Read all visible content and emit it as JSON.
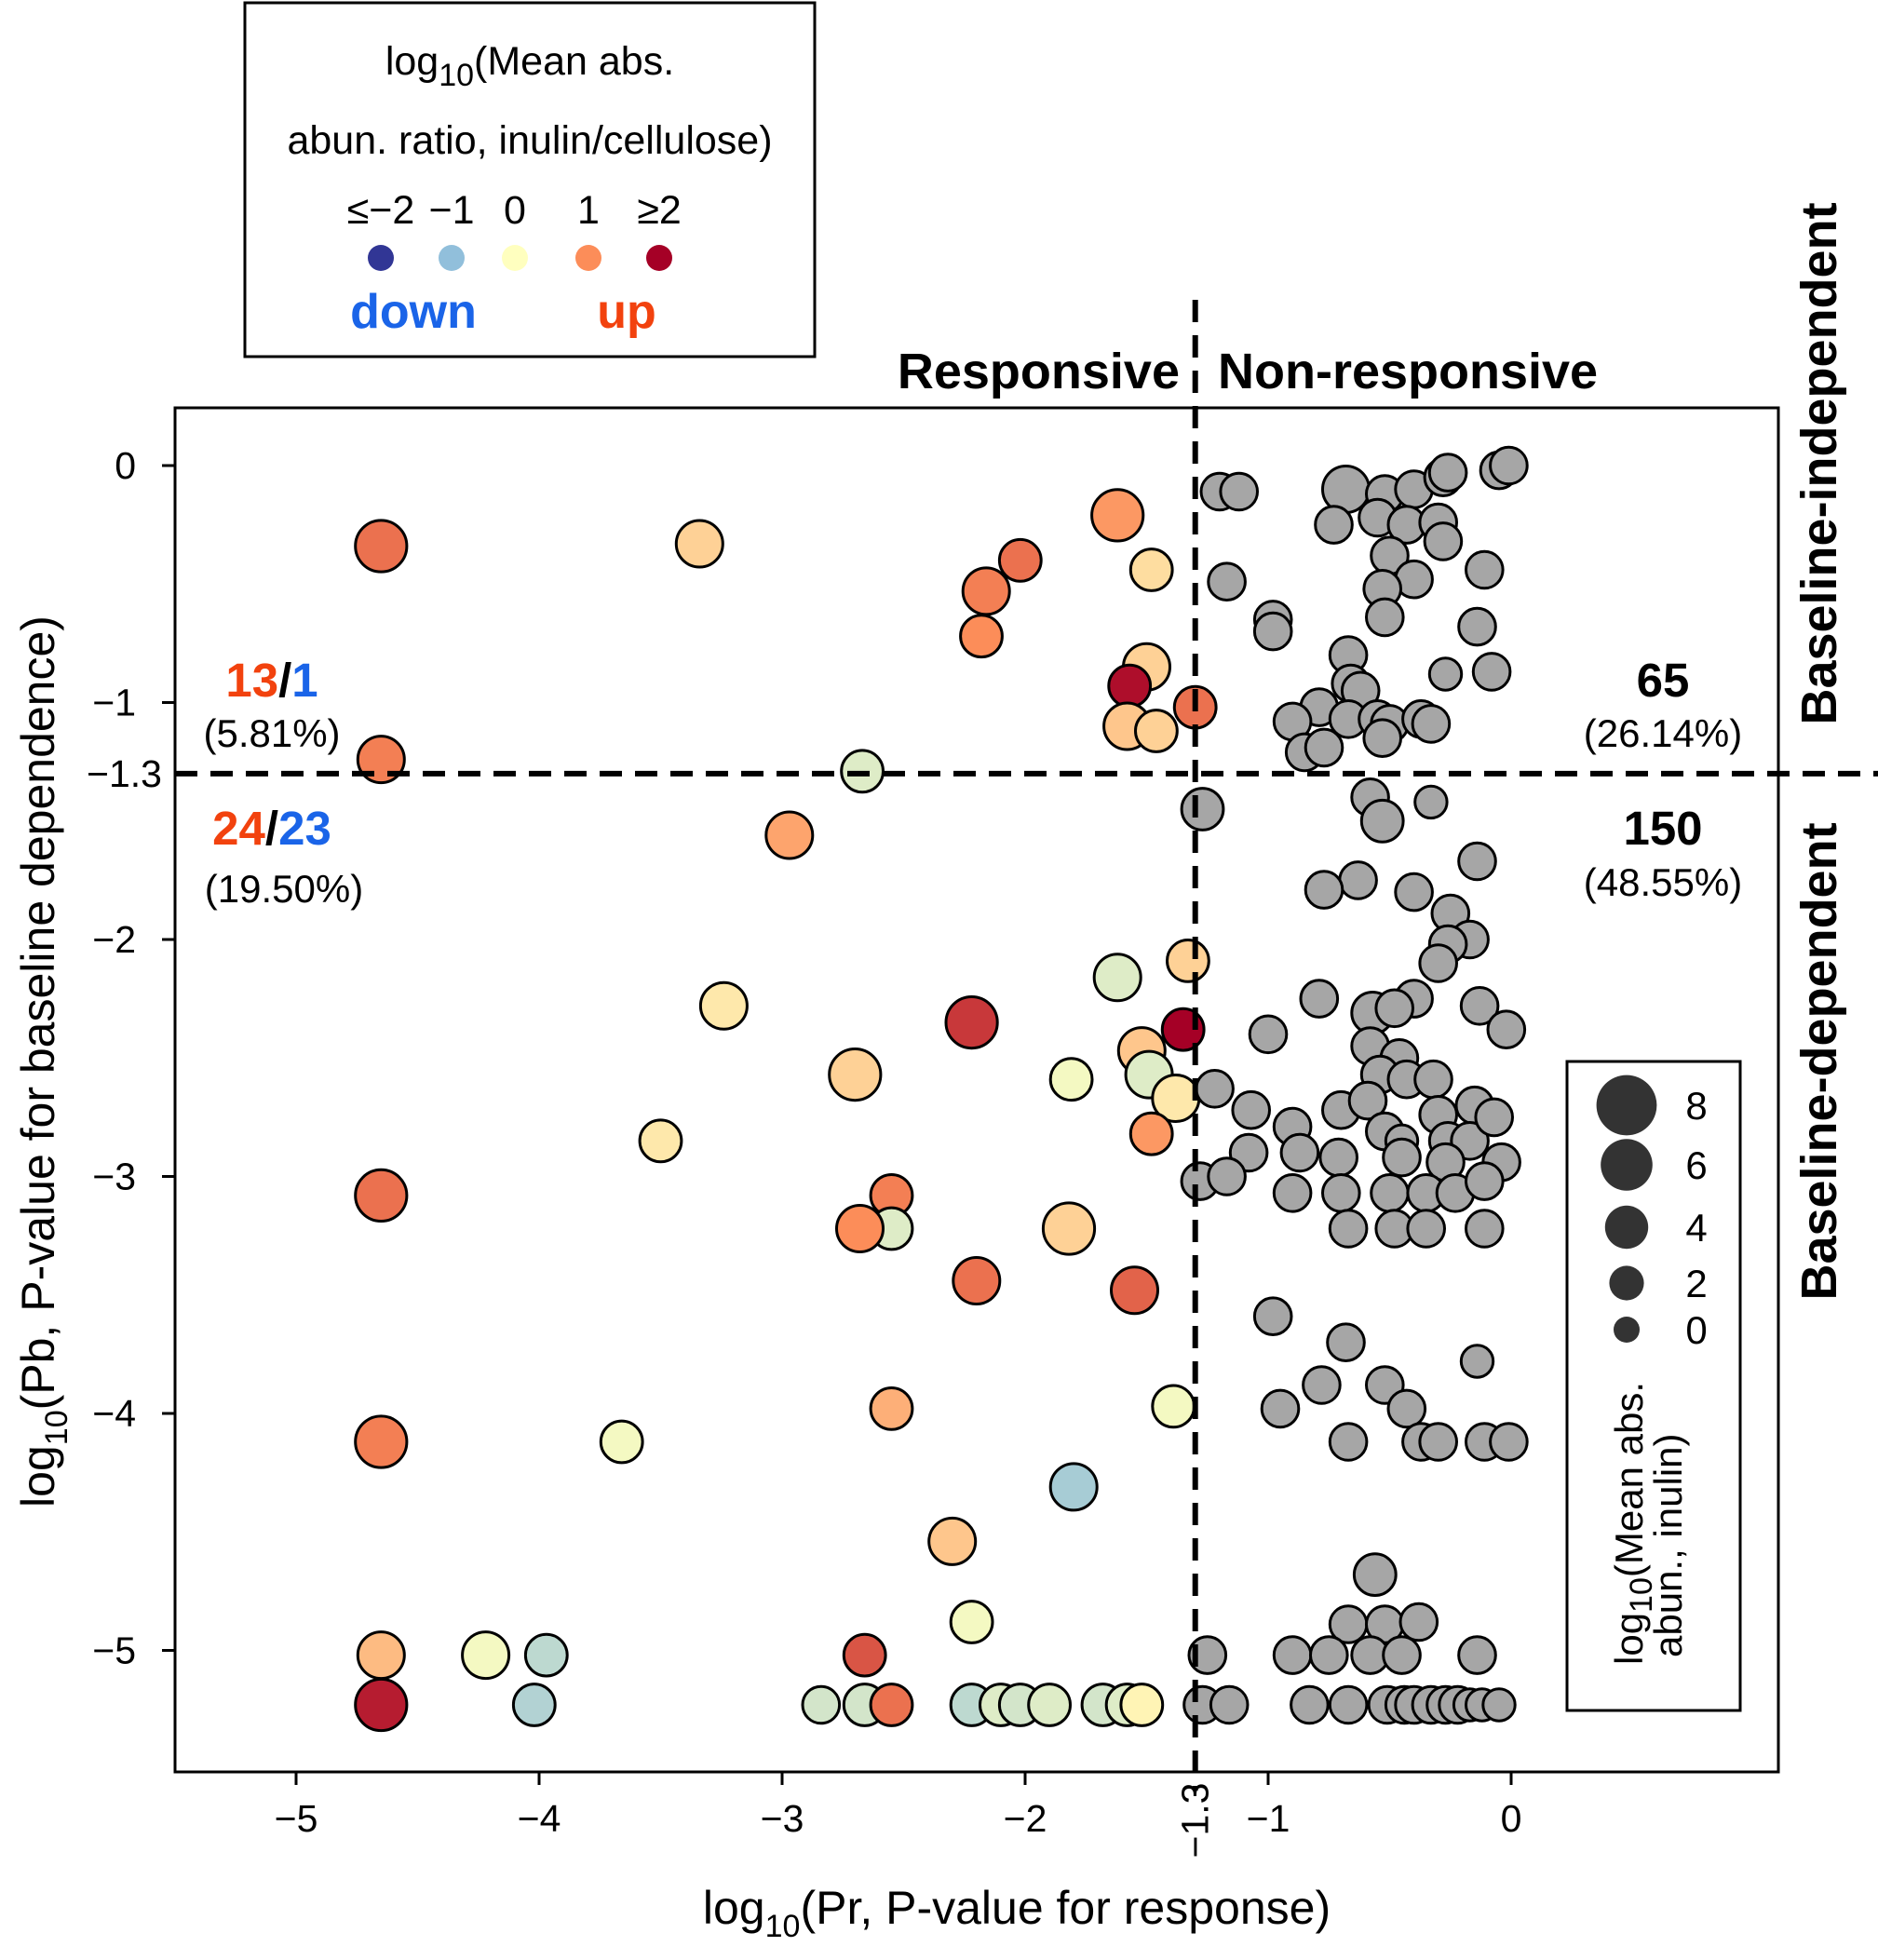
{
  "chart_data": {
    "type": "scatter",
    "xlabel": {
      "prefix": "log",
      "sub": "10",
      "text": "(Pr, P-value for response)"
    },
    "ylabel": {
      "prefix": "log",
      "sub": "10",
      "text": "(Pb, P-value for baseline dependence)"
    },
    "xlim": [
      -5.5,
      1.1
    ],
    "ylim": [
      -5.5,
      0.25
    ],
    "xticks": [
      -5,
      -4,
      -3,
      -2,
      -1,
      0
    ],
    "xtick_labels": [
      "−5",
      "−4",
      "−3",
      "−2",
      "−1",
      "0"
    ],
    "yticks": [
      0,
      -1,
      -2,
      -3,
      -4,
      -5
    ],
    "ytick_labels": [
      "0",
      "−1",
      "−2",
      "−3",
      "−4",
      "−5"
    ],
    "thresholds": {
      "x": -1.3,
      "y": -1.3,
      "x_label": "−1.3",
      "y_label": "−1.3"
    },
    "region_labels": {
      "left": "Responsive",
      "right": "Non-responsive",
      "top": "Baseline-independent",
      "bottom": "Baseline-dependent"
    },
    "quadrant_counts": {
      "top_left": {
        "up": "13",
        "sep": "/",
        "down": "1",
        "pct": "(5.81%)"
      },
      "bottom_left": {
        "up": "24",
        "sep": "/",
        "down": "23",
        "pct": "(19.50%)"
      },
      "top_right": {
        "count": "65",
        "pct": "(26.14%)"
      },
      "bottom_right": {
        "count": "150",
        "pct": "(48.55%)"
      }
    },
    "color_legend": {
      "title_prefix": "log",
      "title_sub": "10",
      "title_line1": "(Mean abs.",
      "title_line2": "abun. ratio, inulin/cellulose)",
      "items": [
        {
          "label": "≤−2",
          "color": "#313695"
        },
        {
          "label": "−1",
          "color": "#91bfdb"
        },
        {
          "label": "0",
          "color": "#ffffbf"
        },
        {
          "label": "1",
          "color": "#fc8d59"
        },
        {
          "label": "≥2",
          "color": "#a50026"
        }
      ],
      "down_label": "down",
      "up_label": "up",
      "down_color": "#1a64e8",
      "up_color": "#f2420e"
    },
    "size_legend": {
      "title_prefix": "log",
      "title_sub": "10",
      "title_line1": "(Mean abs.",
      "title_line2": "abun., inulin)",
      "values": [
        8,
        6,
        4,
        2,
        0
      ],
      "labels": [
        "8",
        "6",
        "4",
        "2",
        "0"
      ]
    },
    "gray_color": "#a6a6a6",
    "points": [
      {
        "x": -4.65,
        "y": -0.34,
        "s": 6,
        "c": 1.2
      },
      {
        "x": -4.65,
        "y": -1.24,
        "s": 5,
        "c": 1.1
      },
      {
        "x": -3.34,
        "y": -0.33,
        "s": 5,
        "c": 0.4
      },
      {
        "x": -1.62,
        "y": -0.21,
        "s": 6,
        "c": 0.9
      },
      {
        "x": -2.02,
        "y": -0.4,
        "s": 4,
        "c": 1.2
      },
      {
        "x": -2.16,
        "y": -0.53,
        "s": 5,
        "c": 1.1
      },
      {
        "x": -1.48,
        "y": -0.44,
        "s": 4,
        "c": 0.3
      },
      {
        "x": -2.18,
        "y": -0.72,
        "s": 4,
        "c": 1.0
      },
      {
        "x": -1.5,
        "y": -0.85,
        "s": 5,
        "c": 0.4
      },
      {
        "x": -1.57,
        "y": -0.93,
        "s": 4,
        "c": 1.9
      },
      {
        "x": -1.3,
        "y": -1.02,
        "s": 4,
        "c": 1.2
      },
      {
        "x": -1.58,
        "y": -1.1,
        "s": 5,
        "c": 0.5
      },
      {
        "x": -1.46,
        "y": -1.12,
        "s": 4,
        "c": 0.4
      },
      {
        "x": -2.67,
        "y": -1.29,
        "s": 4,
        "c": -0.3
      },
      {
        "x": -2.97,
        "y": -1.56,
        "s": 5,
        "c": 0.8
      },
      {
        "x": -1.33,
        "y": -2.09,
        "s": 4,
        "c": 0.4
      },
      {
        "x": -1.62,
        "y": -2.16,
        "s": 5,
        "c": -0.3
      },
      {
        "x": -3.24,
        "y": -2.28,
        "s": 5,
        "c": 0.2
      },
      {
        "x": -2.22,
        "y": -2.35,
        "s": 6,
        "c": 1.6
      },
      {
        "x": -1.35,
        "y": -2.38,
        "s": 4,
        "c": 2.0
      },
      {
        "x": -1.52,
        "y": -2.47,
        "s": 5,
        "c": 0.5
      },
      {
        "x": -1.49,
        "y": -2.57,
        "s": 5,
        "c": -0.3
      },
      {
        "x": -2.7,
        "y": -2.57,
        "s": 6,
        "c": 0.4
      },
      {
        "x": -1.81,
        "y": -2.59,
        "s": 4,
        "c": -0.1
      },
      {
        "x": -1.38,
        "y": -2.67,
        "s": 5,
        "c": 0.2
      },
      {
        "x": -1.48,
        "y": -2.82,
        "s": 4,
        "c": 0.9
      },
      {
        "x": -3.5,
        "y": -2.85,
        "s": 4,
        "c": 0.2
      },
      {
        "x": -4.65,
        "y": -3.08,
        "s": 6,
        "c": 1.2
      },
      {
        "x": -2.55,
        "y": -3.08,
        "s": 4,
        "c": 1.1
      },
      {
        "x": -2.55,
        "y": -3.22,
        "s": 4,
        "c": -0.3
      },
      {
        "x": -2.68,
        "y": -3.22,
        "s": 5,
        "c": 1.0
      },
      {
        "x": -1.82,
        "y": -3.22,
        "s": 6,
        "c": 0.4
      },
      {
        "x": -2.2,
        "y": -3.44,
        "s": 5,
        "c": 1.2
      },
      {
        "x": -1.55,
        "y": -3.48,
        "s": 5,
        "c": 1.3
      },
      {
        "x": -4.65,
        "y": -4.12,
        "s": 6,
        "c": 1.1
      },
      {
        "x": -3.66,
        "y": -4.12,
        "s": 4,
        "c": -0.1
      },
      {
        "x": -2.55,
        "y": -3.98,
        "s": 4,
        "c": 0.7
      },
      {
        "x": -1.39,
        "y": -3.97,
        "s": 4,
        "c": -0.1
      },
      {
        "x": -1.8,
        "y": -4.31,
        "s": 5,
        "c": -0.8
      },
      {
        "x": -2.3,
        "y": -4.54,
        "s": 5,
        "c": 0.5
      },
      {
        "x": -2.22,
        "y": -4.88,
        "s": 4,
        "c": -0.1
      },
      {
        "x": -4.65,
        "y": -5.02,
        "s": 5,
        "c": 0.6
      },
      {
        "x": -4.22,
        "y": -5.02,
        "s": 5,
        "c": -0.1
      },
      {
        "x": -3.97,
        "y": -5.02,
        "s": 4,
        "c": -0.6
      },
      {
        "x": -2.66,
        "y": -5.02,
        "s": 4,
        "c": 1.4
      },
      {
        "x": -4.65,
        "y": -5.23,
        "s": 6,
        "c": 1.8
      },
      {
        "x": -4.02,
        "y": -5.23,
        "s": 4,
        "c": -0.7
      },
      {
        "x": -2.84,
        "y": -5.23,
        "s": 3,
        "c": -0.4
      },
      {
        "x": -2.66,
        "y": -5.23,
        "s": 4,
        "c": -0.4
      },
      {
        "x": -2.55,
        "y": -5.23,
        "s": 4,
        "c": 1.2
      },
      {
        "x": -2.22,
        "y": -5.23,
        "s": 4,
        "c": -0.6
      },
      {
        "x": -2.1,
        "y": -5.23,
        "s": 4,
        "c": -0.3
      },
      {
        "x": -2.02,
        "y": -5.23,
        "s": 4,
        "c": -0.4
      },
      {
        "x": -1.9,
        "y": -5.23,
        "s": 4,
        "c": -0.3
      },
      {
        "x": -1.68,
        "y": -5.23,
        "s": 4,
        "c": -0.4
      },
      {
        "x": -1.58,
        "y": -5.23,
        "s": 4,
        "c": -0.3
      },
      {
        "x": -1.52,
        "y": -5.23,
        "s": 4,
        "c": 0.1
      },
      {
        "x": -1.2,
        "y": -0.11,
        "g": 3
      },
      {
        "x": -1.12,
        "y": -0.11,
        "g": 3
      },
      {
        "x": -1.17,
        "y": -0.49,
        "g": 3
      },
      {
        "x": -0.98,
        "y": -0.65,
        "g": 3
      },
      {
        "x": -0.98,
        "y": -0.7,
        "g": 3
      },
      {
        "x": -1.27,
        "y": -1.45,
        "g": 4
      },
      {
        "x": -0.68,
        "y": -0.1,
        "g": 5
      },
      {
        "x": -0.73,
        "y": -0.25,
        "g": 3
      },
      {
        "x": -0.52,
        "y": -0.12,
        "g": 3
      },
      {
        "x": -0.4,
        "y": -0.1,
        "g": 3
      },
      {
        "x": -0.28,
        "y": -0.05,
        "g": 3
      },
      {
        "x": -0.26,
        "y": -0.03,
        "g": 3
      },
      {
        "x": -0.05,
        "y": -0.02,
        "g": 3
      },
      {
        "x": -0.01,
        "y": 0.0,
        "g": 3
      },
      {
        "x": -0.55,
        "y": -0.22,
        "g": 3
      },
      {
        "x": -0.43,
        "y": -0.25,
        "g": 3
      },
      {
        "x": -0.3,
        "y": -0.24,
        "g": 3
      },
      {
        "x": -0.5,
        "y": -0.38,
        "g": 3
      },
      {
        "x": -0.28,
        "y": -0.32,
        "g": 3
      },
      {
        "x": -0.4,
        "y": -0.48,
        "g": 3
      },
      {
        "x": -0.11,
        "y": -0.44,
        "g": 3
      },
      {
        "x": -0.53,
        "y": -0.52,
        "g": 3
      },
      {
        "x": -0.52,
        "y": -0.64,
        "g": 3
      },
      {
        "x": -0.14,
        "y": -0.68,
        "g": 3
      },
      {
        "x": -0.08,
        "y": -0.87,
        "g": 3
      },
      {
        "x": -0.27,
        "y": -0.88,
        "g": 2
      },
      {
        "x": -0.67,
        "y": -0.8,
        "g": 3
      },
      {
        "x": -0.66,
        "y": -0.92,
        "g": 3
      },
      {
        "x": -0.62,
        "y": -0.95,
        "g": 3
      },
      {
        "x": -0.79,
        "y": -1.02,
        "g": 3
      },
      {
        "x": -0.67,
        "y": -1.07,
        "g": 3
      },
      {
        "x": -0.55,
        "y": -1.07,
        "g": 3
      },
      {
        "x": -0.9,
        "y": -1.08,
        "g": 3
      },
      {
        "x": -0.5,
        "y": -1.09,
        "g": 3
      },
      {
        "x": -0.37,
        "y": -1.07,
        "g": 3
      },
      {
        "x": -0.33,
        "y": -1.09,
        "g": 3
      },
      {
        "x": -0.85,
        "y": -1.21,
        "g": 3
      },
      {
        "x": -0.77,
        "y": -1.19,
        "g": 3
      },
      {
        "x": -0.53,
        "y": -1.15,
        "g": 3
      },
      {
        "x": -0.58,
        "y": -1.4,
        "g": 3
      },
      {
        "x": -0.33,
        "y": -1.42,
        "g": 2
      },
      {
        "x": -0.53,
        "y": -1.5,
        "g": 4
      },
      {
        "x": -0.63,
        "y": -1.75,
        "g": 3
      },
      {
        "x": -0.77,
        "y": -1.79,
        "g": 3
      },
      {
        "x": -0.4,
        "y": -1.8,
        "g": 3
      },
      {
        "x": -0.25,
        "y": -1.89,
        "g": 3
      },
      {
        "x": -0.14,
        "y": -1.67,
        "g": 3
      },
      {
        "x": -0.17,
        "y": -2.0,
        "g": 3
      },
      {
        "x": -0.26,
        "y": -2.02,
        "g": 3
      },
      {
        "x": -0.3,
        "y": -2.1,
        "g": 3
      },
      {
        "x": -0.79,
        "y": -2.25,
        "g": 3
      },
      {
        "x": -0.4,
        "y": -2.25,
        "g": 3
      },
      {
        "x": -0.13,
        "y": -2.28,
        "g": 3
      },
      {
        "x": -0.57,
        "y": -2.31,
        "g": 4
      },
      {
        "x": -0.48,
        "y": -2.29,
        "g": 3
      },
      {
        "x": -0.02,
        "y": -2.38,
        "g": 3
      },
      {
        "x": -1.0,
        "y": -2.4,
        "g": 3
      },
      {
        "x": -0.58,
        "y": -2.45,
        "g": 3
      },
      {
        "x": -0.46,
        "y": -2.5,
        "g": 3
      },
      {
        "x": -0.54,
        "y": -2.57,
        "g": 3
      },
      {
        "x": -0.43,
        "y": -2.59,
        "g": 3
      },
      {
        "x": -0.32,
        "y": -2.59,
        "g": 3
      },
      {
        "x": -1.22,
        "y": -2.63,
        "g": 3
      },
      {
        "x": -1.07,
        "y": -2.72,
        "g": 3
      },
      {
        "x": -0.9,
        "y": -2.79,
        "g": 3
      },
      {
        "x": -0.7,
        "y": -2.72,
        "g": 3
      },
      {
        "x": -0.59,
        "y": -2.68,
        "g": 3
      },
      {
        "x": -0.3,
        "y": -2.74,
        "g": 3
      },
      {
        "x": -0.15,
        "y": -2.7,
        "g": 3
      },
      {
        "x": -0.52,
        "y": -2.81,
        "g": 3
      },
      {
        "x": -0.45,
        "y": -2.85,
        "g": 2
      },
      {
        "x": -0.26,
        "y": -2.85,
        "g": 3
      },
      {
        "x": -0.17,
        "y": -2.85,
        "g": 3
      },
      {
        "x": -0.07,
        "y": -2.75,
        "g": 3
      },
      {
        "x": -1.08,
        "y": -2.9,
        "g": 3
      },
      {
        "x": -0.87,
        "y": -2.9,
        "g": 3
      },
      {
        "x": -0.71,
        "y": -2.92,
        "g": 3
      },
      {
        "x": -0.45,
        "y": -2.92,
        "g": 3
      },
      {
        "x": -0.27,
        "y": -2.94,
        "g": 3
      },
      {
        "x": -0.04,
        "y": -2.94,
        "g": 3
      },
      {
        "x": -1.28,
        "y": -3.02,
        "g": 3
      },
      {
        "x": -1.17,
        "y": -3.0,
        "g": 3
      },
      {
        "x": -0.9,
        "y": -3.07,
        "g": 3
      },
      {
        "x": -0.7,
        "y": -3.07,
        "g": 3
      },
      {
        "x": -0.5,
        "y": -3.07,
        "g": 3
      },
      {
        "x": -0.35,
        "y": -3.07,
        "g": 3
      },
      {
        "x": -0.23,
        "y": -3.07,
        "g": 3
      },
      {
        "x": -0.11,
        "y": -3.02,
        "g": 3
      },
      {
        "x": -0.67,
        "y": -3.22,
        "g": 3
      },
      {
        "x": -0.48,
        "y": -3.22,
        "g": 3
      },
      {
        "x": -0.35,
        "y": -3.22,
        "g": 3
      },
      {
        "x": -0.11,
        "y": -3.22,
        "g": 3
      },
      {
        "x": -0.98,
        "y": -3.59,
        "g": 3
      },
      {
        "x": -0.68,
        "y": -3.7,
        "g": 3
      },
      {
        "x": -0.78,
        "y": -3.88,
        "g": 3
      },
      {
        "x": -0.52,
        "y": -3.88,
        "g": 3
      },
      {
        "x": -0.14,
        "y": -3.78,
        "g": 2
      },
      {
        "x": -0.95,
        "y": -3.98,
        "g": 3
      },
      {
        "x": -0.43,
        "y": -3.98,
        "g": 3
      },
      {
        "x": -0.67,
        "y": -4.12,
        "g": 3
      },
      {
        "x": -0.37,
        "y": -4.12,
        "g": 3
      },
      {
        "x": -0.3,
        "y": -4.12,
        "g": 3
      },
      {
        "x": -0.11,
        "y": -4.12,
        "g": 3
      },
      {
        "x": -0.01,
        "y": -4.12,
        "g": 3
      },
      {
        "x": -0.56,
        "y": -4.68,
        "g": 4
      },
      {
        "x": -0.67,
        "y": -4.89,
        "g": 3
      },
      {
        "x": -0.52,
        "y": -4.89,
        "g": 3
      },
      {
        "x": -0.38,
        "y": -4.88,
        "g": 3
      },
      {
        "x": -1.25,
        "y": -5.02,
        "g": 3
      },
      {
        "x": -0.9,
        "y": -5.02,
        "g": 3
      },
      {
        "x": -0.75,
        "y": -5.02,
        "g": 3
      },
      {
        "x": -0.58,
        "y": -5.02,
        "g": 3
      },
      {
        "x": -0.45,
        "y": -5.02,
        "g": 3
      },
      {
        "x": -0.14,
        "y": -5.02,
        "g": 3
      },
      {
        "x": -1.27,
        "y": -5.23,
        "g": 3
      },
      {
        "x": -1.16,
        "y": -5.23,
        "g": 3
      },
      {
        "x": -0.83,
        "y": -5.23,
        "g": 3
      },
      {
        "x": -0.67,
        "y": -5.23,
        "g": 3
      },
      {
        "x": -0.51,
        "y": -5.23,
        "g": 3
      },
      {
        "x": -0.44,
        "y": -5.23,
        "g": 3
      },
      {
        "x": -0.4,
        "y": -5.23,
        "g": 3
      },
      {
        "x": -0.33,
        "y": -5.23,
        "g": 3
      },
      {
        "x": -0.27,
        "y": -5.23,
        "g": 3
      },
      {
        "x": -0.22,
        "y": -5.23,
        "g": 3
      },
      {
        "x": -0.17,
        "y": -5.23,
        "g": 2
      },
      {
        "x": -0.12,
        "y": -5.23,
        "g": 2
      },
      {
        "x": -0.05,
        "y": -5.23,
        "g": 2
      }
    ]
  }
}
